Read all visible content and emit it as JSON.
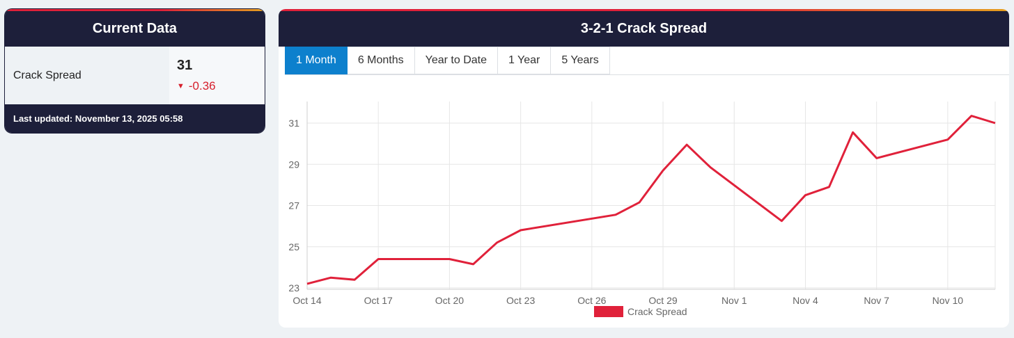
{
  "left_card": {
    "title": "Current Data",
    "row_label": "Crack Spread",
    "value": "31",
    "change": "-0.36",
    "last_updated": "Last updated: November 13, 2025 05:58"
  },
  "right_card": {
    "title": "3-2-1 Crack Spread",
    "tabs": [
      {
        "label": "1 Month",
        "active": true
      },
      {
        "label": "6 Months",
        "active": false
      },
      {
        "label": "Year to Date",
        "active": false
      },
      {
        "label": "1 Year",
        "active": false
      },
      {
        "label": "5 Years",
        "active": false
      }
    ]
  },
  "colors": {
    "navy": "#1d1f3a",
    "accent_red": "#e0213a",
    "tab_blue": "#0d80cd",
    "change_red": "#d61f2c"
  },
  "chart_data": {
    "type": "line",
    "title": "",
    "xlabel": "",
    "ylabel": "",
    "ylim": [
      23,
      32
    ],
    "yticks": [
      23,
      25,
      27,
      29,
      31
    ],
    "xtick_labels": [
      "Oct 14",
      "Oct 17",
      "Oct 20",
      "Oct 23",
      "Oct 26",
      "Oct 29",
      "Nov 1",
      "Nov 4",
      "Nov 7",
      "Nov 10"
    ],
    "xtick_dates": [
      "2025-10-14",
      "2025-10-17",
      "2025-10-20",
      "2025-10-23",
      "2025-10-26",
      "2025-10-29",
      "2025-11-01",
      "2025-11-04",
      "2025-11-07",
      "2025-11-10"
    ],
    "xlim": [
      "2025-10-14",
      "2025-11-12"
    ],
    "grid": true,
    "legend": "bottom",
    "series": [
      {
        "name": "Crack Spread",
        "color": "#e0213a",
        "points": [
          {
            "x": "2025-10-14",
            "y": 23.2
          },
          {
            "x": "2025-10-15",
            "y": 23.5
          },
          {
            "x": "2025-10-16",
            "y": 23.4
          },
          {
            "x": "2025-10-17",
            "y": 24.4
          },
          {
            "x": "2025-10-20",
            "y": 24.4
          },
          {
            "x": "2025-10-21",
            "y": 24.15
          },
          {
            "x": "2025-10-22",
            "y": 25.2
          },
          {
            "x": "2025-10-23",
            "y": 25.8
          },
          {
            "x": "2025-10-27",
            "y": 26.55
          },
          {
            "x": "2025-10-28",
            "y": 27.15
          },
          {
            "x": "2025-10-29",
            "y": 28.7
          },
          {
            "x": "2025-10-30",
            "y": 29.95
          },
          {
            "x": "2025-10-31",
            "y": 28.85
          },
          {
            "x": "2025-11-03",
            "y": 26.25
          },
          {
            "x": "2025-11-04",
            "y": 27.5
          },
          {
            "x": "2025-11-05",
            "y": 27.9
          },
          {
            "x": "2025-11-06",
            "y": 30.55
          },
          {
            "x": "2025-11-07",
            "y": 29.3
          },
          {
            "x": "2025-11-10",
            "y": 30.2
          },
          {
            "x": "2025-11-11",
            "y": 31.35
          },
          {
            "x": "2025-11-12",
            "y": 31.0
          }
        ]
      }
    ]
  }
}
